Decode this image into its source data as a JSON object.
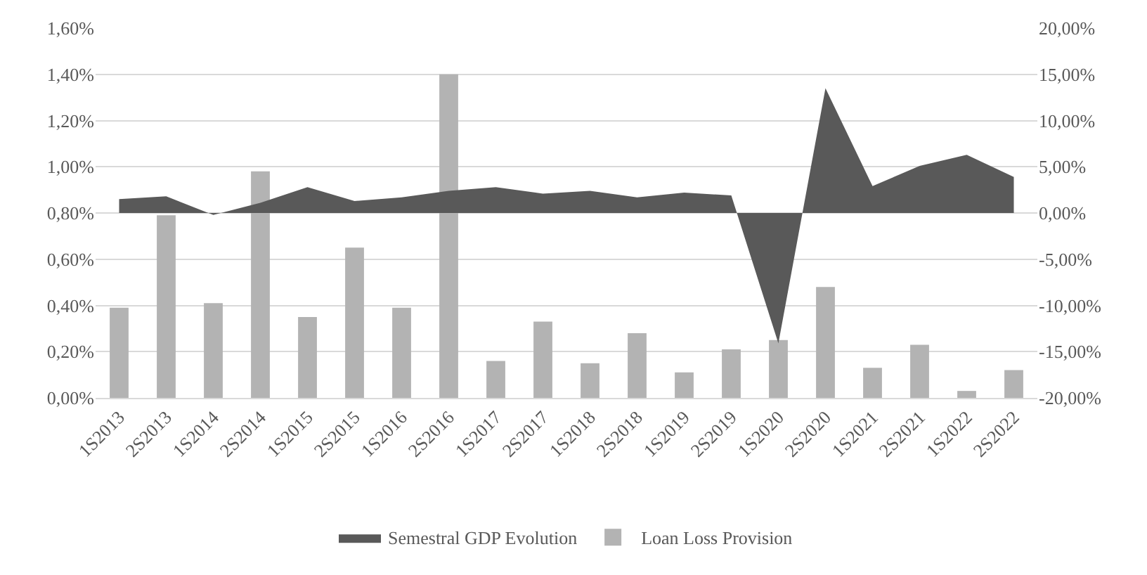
{
  "chart_data": {
    "type": "bar",
    "categories": [
      "1S2013",
      "2S2013",
      "1S2014",
      "2S2014",
      "1S2015",
      "2S2015",
      "1S2016",
      "2S2016",
      "1S2017",
      "2S2017",
      "1S2018",
      "2S2018",
      "1S2019",
      "2S2019",
      "1S2020",
      "2S2020",
      "1S2021",
      "2S2021",
      "1S2022",
      "2S2022"
    ],
    "series": [
      {
        "name": "Semestral GDP Evolution",
        "type": "area",
        "axis": "y2",
        "color": "#595959",
        "values": [
          1.5,
          1.8,
          -0.2,
          1.1,
          2.8,
          1.3,
          1.7,
          2.4,
          2.8,
          2.1,
          2.4,
          1.7,
          2.2,
          1.9,
          -14.1,
          13.5,
          2.9,
          5.1,
          6.3,
          3.9
        ]
      },
      {
        "name": "Loan Loss Provision",
        "color": "#b3b3b3",
        "values": [
          0.39,
          0.79,
          0.41,
          0.98,
          0.35,
          0.65,
          0.39,
          1.4,
          0.16,
          0.33,
          0.15,
          0.28,
          0.11,
          0.21,
          0.25,
          0.48,
          0.13,
          0.23,
          0.03,
          0.12
        ]
      }
    ],
    "ylim": [
      0,
      1.6
    ],
    "yticks": [
      {
        "value": 0,
        "label": "0,00%"
      },
      {
        "value": 0.2,
        "label": "0,20%"
      },
      {
        "value": 0.4,
        "label": "0,40%"
      },
      {
        "value": 0.6,
        "label": "0,60%"
      },
      {
        "value": 0.8,
        "label": "0,80%"
      },
      {
        "value": 1,
        "label": "1,00%"
      },
      {
        "value": 1.2,
        "label": "1,20%"
      },
      {
        "value": 1.4,
        "label": "1,40%"
      },
      {
        "value": 1.6,
        "label": "1,60%"
      }
    ],
    "y2lim": [
      -20,
      20
    ],
    "y2ticks": [
      {
        "value": -20,
        "label": "-20,00%"
      },
      {
        "value": -15,
        "label": "-15,00%"
      },
      {
        "value": -10,
        "label": "-10,00%"
      },
      {
        "value": -5,
        "label": "-5,00%"
      },
      {
        "value": 0,
        "label": "0,00%"
      },
      {
        "value": 5,
        "label": "5,00%"
      },
      {
        "value": 10,
        "label": "10,00%"
      },
      {
        "value": 15,
        "label": "15,00%"
      },
      {
        "value": 20,
        "label": "20,00%"
      }
    ],
    "grid": "y",
    "legend": "bottom"
  }
}
